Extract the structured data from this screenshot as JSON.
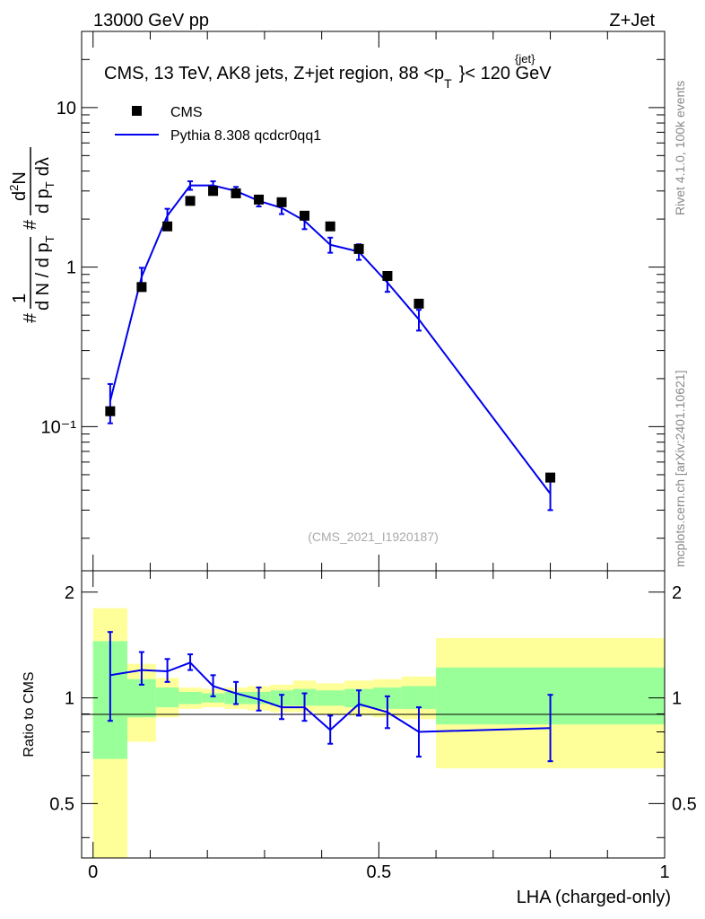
{
  "header": {
    "energy": "13000 GeV pp",
    "process": "Z+Jet"
  },
  "side_labels": {
    "rivet": "Rivet 4.1.0,  100k events",
    "mcplots": "mcplots.cern.ch [arXiv:2401.10621]"
  },
  "colors": {
    "mc": "#0000ee",
    "band_outer": "#ffff99",
    "band_inner": "#99ff99",
    "data": "#000000"
  },
  "chart_data": [
    {
      "type": "scatter",
      "panel": "main",
      "title": "CMS, 13 TeV, AK8 jets, Z+jet region, 88 <p",
      "title_sup": "{jet}",
      "title_sub": "T",
      "title_tail": "}< 120 GeV",
      "ylabel": "# (1/dN/dp_T) # (d^2N/dp_T dλ)",
      "ylabel_parts": {
        "hash": "#",
        "one": "1",
        "den": "d N / d p",
        "sub_t": "T",
        "num2": "d",
        "sup2": "2",
        "n": "N",
        "den2": "d p",
        "lambda": "dλ"
      },
      "yscale": "log",
      "ylim": [
        0.0125,
        30
      ],
      "y_tick_labels": [
        "10⁻¹",
        "1",
        "10"
      ],
      "watermark": "(CMS_2021_I1920187)",
      "legend": {
        "placement": "top-left",
        "entries": [
          "CMS",
          "Pythia 8.308 qcdcr0qq1"
        ]
      },
      "series": [
        {
          "name": "CMS",
          "style": "markers",
          "x": [
            0.03,
            0.085,
            0.13,
            0.17,
            0.21,
            0.25,
            0.29,
            0.33,
            0.37,
            0.415,
            0.465,
            0.515,
            0.57,
            0.8
          ],
          "y": [
            0.125,
            0.75,
            1.8,
            2.6,
            3.0,
            2.9,
            2.65,
            2.55,
            2.1,
            1.8,
            1.3,
            0.88,
            0.59,
            0.048
          ]
        },
        {
          "name": "Pythia 8.308 qcdcr0qq1",
          "style": "line",
          "x_edges": [
            0.03,
            0.085,
            0.13,
            0.17,
            0.21,
            0.25,
            0.29,
            0.33,
            0.37,
            0.415,
            0.465,
            0.515,
            0.57,
            0.8
          ],
          "y": [
            0.145,
            0.87,
            2.1,
            3.25,
            3.25,
            3.0,
            2.6,
            2.35,
            1.95,
            1.38,
            1.25,
            0.8,
            0.47,
            0.038
          ],
          "err_low": [
            0.04,
            0.12,
            0.22,
            0.2,
            0.2,
            0.18,
            0.2,
            0.2,
            0.22,
            0.15,
            0.14,
            0.1,
            0.07,
            0.008
          ],
          "err_high": [
            0.04,
            0.12,
            0.22,
            0.2,
            0.2,
            0.18,
            0.2,
            0.2,
            0.22,
            0.15,
            0.14,
            0.1,
            0.07,
            0.008
          ]
        }
      ]
    },
    {
      "type": "line",
      "panel": "ratio",
      "xlabel": "LHA (charged-only)",
      "ylabel": "Ratio to CMS",
      "ylim": [
        0.35,
        2.3
      ],
      "xlim": [
        -0.02,
        1.0
      ],
      "x_tick_labels": [
        "0",
        "0.5",
        "1"
      ],
      "y_tick_labels": [
        "0.5",
        "1",
        "2"
      ],
      "bins": [
        0.0,
        0.06,
        0.11,
        0.15,
        0.19,
        0.23,
        0.27,
        0.31,
        0.35,
        0.39,
        0.44,
        0.49,
        0.54,
        0.6,
        1.0
      ],
      "band_outer_low": [
        0.35,
        0.75,
        0.88,
        0.93,
        0.94,
        0.93,
        0.92,
        0.91,
        0.91,
        0.9,
        0.89,
        0.88,
        0.87,
        0.63
      ],
      "band_outer_high": [
        1.8,
        1.25,
        1.14,
        1.07,
        1.06,
        1.07,
        1.08,
        1.09,
        1.12,
        1.1,
        1.12,
        1.13,
        1.15,
        1.48
      ],
      "band_inner_low": [
        0.67,
        0.88,
        0.94,
        0.96,
        0.97,
        0.96,
        0.96,
        0.95,
        0.95,
        0.95,
        0.94,
        0.93,
        0.93,
        0.84
      ],
      "band_inner_high": [
        1.45,
        1.13,
        1.07,
        1.04,
        1.03,
        1.04,
        1.04,
        1.05,
        1.06,
        1.05,
        1.06,
        1.07,
        1.08,
        1.22
      ],
      "series": [
        {
          "name": "Pythia 8.308 qcdcr0qq1",
          "x": [
            0.03,
            0.085,
            0.13,
            0.17,
            0.21,
            0.25,
            0.29,
            0.33,
            0.37,
            0.415,
            0.465,
            0.515,
            0.57,
            0.8
          ],
          "y": [
            1.16,
            1.2,
            1.19,
            1.26,
            1.08,
            1.03,
            0.99,
            0.94,
            0.94,
            0.81,
            0.96,
            0.91,
            0.8,
            0.82
          ],
          "err_low": [
            0.3,
            0.11,
            0.08,
            0.06,
            0.07,
            0.07,
            0.07,
            0.07,
            0.08,
            0.07,
            0.07,
            0.09,
            0.12,
            0.16
          ],
          "err_high": [
            0.38,
            0.15,
            0.1,
            0.07,
            0.08,
            0.08,
            0.08,
            0.08,
            0.09,
            0.08,
            0.09,
            0.1,
            0.14,
            0.2
          ]
        }
      ]
    }
  ]
}
